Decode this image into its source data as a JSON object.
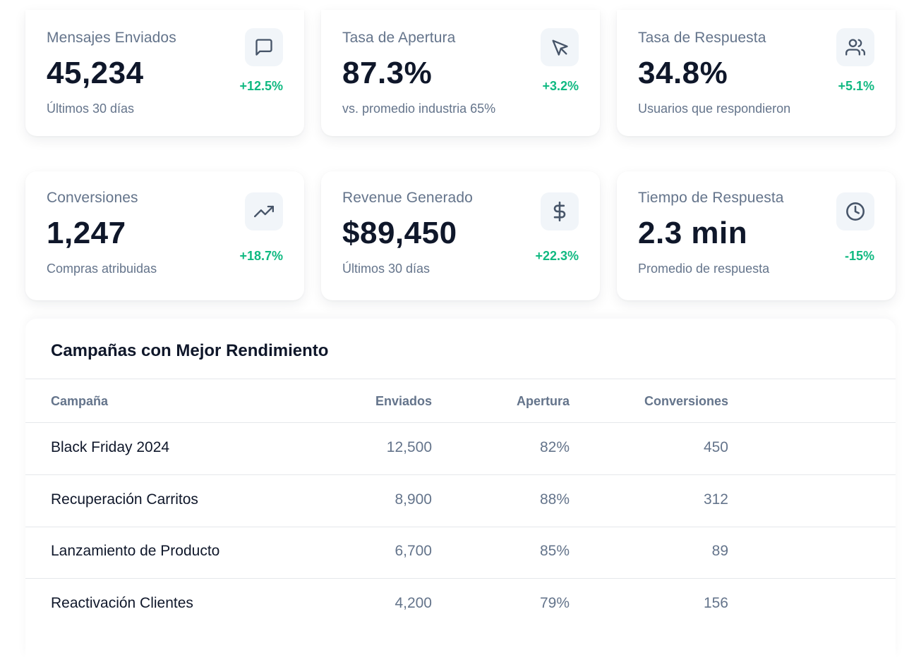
{
  "stats": [
    {
      "title": "Mensajes Enviados",
      "value": "45,234",
      "sub": "Últimos 30 días",
      "change": "+12.5%",
      "icon": "message-icon"
    },
    {
      "title": "Tasa de Apertura",
      "value": "87.3%",
      "sub": "vs. promedio industria 65%",
      "change": "+3.2%",
      "icon": "cursor-icon"
    },
    {
      "title": "Tasa de Respuesta",
      "value": "34.8%",
      "sub": "Usuarios que respondieron",
      "change": "+5.1%",
      "icon": "users-icon"
    },
    {
      "title": "Conversiones",
      "value": "1,247",
      "sub": "Compras atribuidas",
      "change": "+18.7%",
      "icon": "trending-up-icon"
    },
    {
      "title": "Revenue Generado",
      "value": "$89,450",
      "sub": "Últimos 30 días",
      "change": "+22.3%",
      "icon": "dollar-icon"
    },
    {
      "title": "Tiempo de Respuesta",
      "value": "2.3 min",
      "sub": "Promedio de respuesta",
      "change": "-15%",
      "icon": "clock-icon"
    }
  ],
  "colors": {
    "positive": "#10b981",
    "muted": "#64748b",
    "text": "#0f172a",
    "icon_bg": "#f1f5f9"
  },
  "campaigns": {
    "title": "Campañas con Mejor Rendimiento",
    "headers": {
      "name": "Campaña",
      "sent": "Enviados",
      "open": "Apertura",
      "conv": "Conversiones"
    },
    "rows": [
      {
        "name": "Black Friday 2024",
        "sent": "12,500",
        "open": "82%",
        "conv": "450"
      },
      {
        "name": "Recuperación Carritos",
        "sent": "8,900",
        "open": "88%",
        "conv": "312"
      },
      {
        "name": "Lanzamiento de Producto",
        "sent": "6,700",
        "open": "85%",
        "conv": "89"
      },
      {
        "name": "Reactivación Clientes",
        "sent": "4,200",
        "open": "79%",
        "conv": "156"
      }
    ]
  }
}
